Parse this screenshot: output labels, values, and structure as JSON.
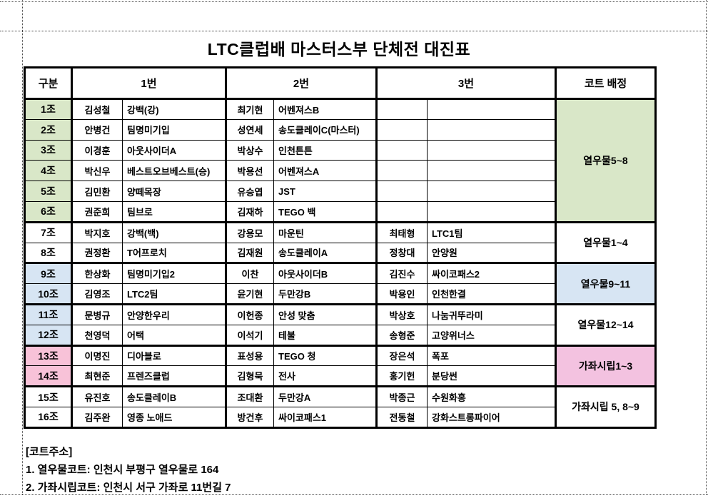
{
  "page": {
    "title": "LTC클럽배 마스터스부 단체전 대진표"
  },
  "table": {
    "headers": {
      "group": "구분",
      "no1": "1번",
      "no2": "2번",
      "no3": "3번",
      "court": "코트 배정"
    },
    "rows": [
      {
        "group": "1조",
        "n1": "김성철",
        "t1": "강백(강)",
        "n2": "최기현",
        "t2": "어벤져스B",
        "n3": "",
        "t3": "",
        "bg": "green"
      },
      {
        "group": "2조",
        "n1": "안병건",
        "t1": "팀명미기입",
        "n2": "성연세",
        "t2": "송도클레이C(마스터)",
        "n3": "",
        "t3": "",
        "bg": "green"
      },
      {
        "group": "3조",
        "n1": "이경훈",
        "t1": "아웃사이더A",
        "n2": "박상수",
        "t2": "인천튼튼",
        "n3": "",
        "t3": "",
        "bg": "green"
      },
      {
        "group": "4조",
        "n1": "박신우",
        "t1": "베스트오브베스트(승)",
        "n2": "박용선",
        "t2": "어벤져스A",
        "n3": "",
        "t3": "",
        "bg": "green"
      },
      {
        "group": "5조",
        "n1": "김민환",
        "t1": "양떼목장",
        "n2": "유승엽",
        "t2": "JST",
        "n3": "",
        "t3": "",
        "bg": "green"
      },
      {
        "group": "6조",
        "n1": "권준희",
        "t1": "팀브로",
        "n2": "김재하",
        "t2": "TEGO 백",
        "n3": "",
        "t3": "",
        "bg": "green"
      },
      {
        "group": "7조",
        "n1": "박지호",
        "t1": "강백(백)",
        "n2": "강용모",
        "t2": "마운틴",
        "n3": "최태형",
        "t3": "LTC1팀",
        "bg": "none"
      },
      {
        "group": "8조",
        "n1": "권정환",
        "t1": "T어프로치",
        "n2": "김재원",
        "t2": "송도클레이A",
        "n3": "정창대",
        "t3": "안양원",
        "bg": "none"
      },
      {
        "group": "9조",
        "n1": "한상화",
        "t1": "팀명미기입2",
        "n2": "이찬",
        "t2": "아웃사이더B",
        "n3": "김진수",
        "t3": "싸이코패스2",
        "bg": "blue"
      },
      {
        "group": "10조",
        "n1": "김영조",
        "t1": "LTC2팀",
        "n2": "윤기현",
        "t2": "두만강B",
        "n3": "박용인",
        "t3": "인천한결",
        "bg": "blue"
      },
      {
        "group": "11조",
        "n1": "문병규",
        "t1": "안양한우리",
        "n2": "이헌종",
        "t2": "안성 맞춤",
        "n3": "박상호",
        "t3": "나눔귀뚜라미",
        "bg": "blue"
      },
      {
        "group": "12조",
        "n1": "천영덕",
        "t1": "어택",
        "n2": "이석기",
        "t2": "테불",
        "n3": "송형준",
        "t3": "고양위너스",
        "bg": "blue"
      },
      {
        "group": "13조",
        "n1": "이명진",
        "t1": "디아블로",
        "n2": "표성용",
        "t2": "TEGO 청",
        "n3": "장은석",
        "t3": "폭포",
        "bg": "pink"
      },
      {
        "group": "14조",
        "n1": "최현준",
        "t1": "프렌즈클럽",
        "n2": "김형묵",
        "t2": "전사",
        "n3": "홍기헌",
        "t3": "분당썬",
        "bg": "pink"
      },
      {
        "group": "15조",
        "n1": "유진호",
        "t1": "송도클레이B",
        "n2": "조대환",
        "t2": "두만강A",
        "n3": "박종근",
        "t3": "수원화홍",
        "bg": "none"
      },
      {
        "group": "16조",
        "n1": "김주완",
        "t1": "영종 노애드",
        "n2": "방건후",
        "t2": "싸이코패스1",
        "n3": "전동철",
        "t3": "강화스트롱파이어",
        "bg": "none"
      }
    ],
    "court_sections": [
      {
        "label": "열우물5~8",
        "span": 6,
        "bg": "green"
      },
      {
        "label": "열우물1~4",
        "span": 2,
        "bg": "none"
      },
      {
        "label": "열우물9~11",
        "span": 2,
        "bg": "blue"
      },
      {
        "label": "열우물12~14",
        "span": 2,
        "bg": "none"
      },
      {
        "label": "가좌시립1~3",
        "span": 2,
        "bg": "pinkc"
      },
      {
        "label": "가좌시립 5, 8~9",
        "span": 2,
        "bg": "none"
      }
    ]
  },
  "footer": {
    "heading": "[코트주소]",
    "line1": "1. 열우물코트: 인천시 부평구 열우물로 164",
    "line2": "2. 가좌시립코트: 인천시 서구 가좌로 11번길 7"
  },
  "colors": {
    "green": "#d9e7c8",
    "blue": "#d7e5f3",
    "pink": "#f8c2d8",
    "pink_court": "#f3c2e0",
    "border": "#000000"
  }
}
